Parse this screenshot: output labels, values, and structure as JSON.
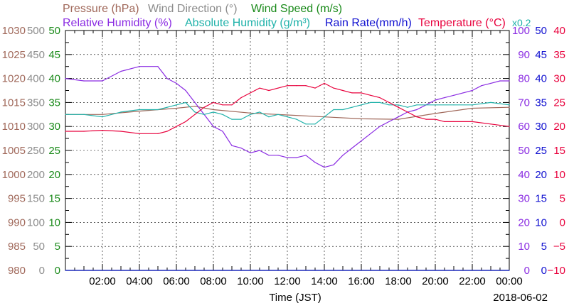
{
  "chart_data": {
    "type": "line",
    "date_label": "2018-06-02",
    "xlabel": "Time (JST)",
    "x_ticks": [
      "02:00",
      "04:00",
      "06:00",
      "08:00",
      "10:00",
      "12:00",
      "14:00",
      "16:00",
      "18:00",
      "20:00",
      "22:00",
      "00:00"
    ],
    "x_range_hours": [
      0,
      24
    ],
    "grid": true,
    "legend_row1": [
      {
        "name": "Pressure (hPa)",
        "color": "#a0685a"
      },
      {
        "name": "Wind Direction (°)",
        "color": "#8c8c8c"
      },
      {
        "name": "Wind Speed (m/s)",
        "color": "#1a8a1a"
      }
    ],
    "legend_row2": [
      {
        "name": "Relative Humidity (%)",
        "color": "#8a2be2"
      },
      {
        "name": "Absolute Humidity (g/m³)",
        "color": "#20b2aa"
      },
      {
        "name": "Rain Rate(mm/h)",
        "color": "#1010d0"
      },
      {
        "name": "Temperature (°C)",
        "color": "#e8003c"
      },
      {
        "name": "x0.2",
        "color": "#20b2aa"
      }
    ],
    "left_axes": [
      {
        "name": "Pressure",
        "color": "#a0685a",
        "ticks": [
          "1030",
          "1025",
          "1020",
          "1015",
          "1010",
          "1005",
          "1000",
          "995",
          "990",
          "985",
          "980"
        ],
        "range": [
          980,
          1030
        ]
      },
      {
        "name": "Wind Direction",
        "color": "#8c8c8c",
        "ticks": [
          "500",
          "450",
          "400",
          "350",
          "300",
          "250",
          "200",
          "150",
          "100",
          "50",
          "0"
        ],
        "range": [
          0,
          500
        ]
      },
      {
        "name": "Wind Speed",
        "color": "#1a8a1a",
        "ticks": [
          "50",
          "45",
          "40",
          "35",
          "30",
          "25",
          "20",
          "15",
          "10",
          "5",
          "0"
        ],
        "range": [
          0,
          50
        ]
      }
    ],
    "right_axes": [
      {
        "name": "Relative Humidity",
        "color": "#8a2be2",
        "ticks": [
          "100",
          "90",
          "80",
          "70",
          "60",
          "50",
          "40",
          "30",
          "20",
          "10",
          "0"
        ],
        "range": [
          0,
          100
        ]
      },
      {
        "name": "Rain Rate",
        "color": "#1010d0",
        "ticks": [
          "50",
          "45",
          "40",
          "35",
          "30",
          "25",
          "20",
          "15",
          "10",
          "5",
          "0"
        ],
        "range": [
          0,
          50
        ]
      },
      {
        "name": "Temperature",
        "color": "#e8003c",
        "ticks": [
          "40",
          "35",
          "30",
          "25",
          "20",
          "15",
          "10",
          "5",
          "0",
          "−5",
          "−10"
        ],
        "range": [
          -10,
          40
        ]
      }
    ],
    "series": [
      {
        "name": "Pressure (hPa)",
        "axis": "Pressure",
        "color": "#a0685a",
        "x": [
          0,
          2,
          4,
          6,
          7,
          8,
          10,
          12,
          14,
          16,
          18,
          20,
          22,
          24
        ],
        "y": [
          1012.5,
          1012.5,
          1013.2,
          1013.8,
          1014.2,
          1013.5,
          1012.8,
          1012.4,
          1012.0,
          1011.6,
          1011.5,
          1012.7,
          1013.8,
          1014.0
        ]
      },
      {
        "name": "Relative Humidity (%)",
        "axis": "Relative Humidity",
        "color": "#8a2be2",
        "x": [
          0,
          1,
          2,
          3,
          4,
          5,
          5.5,
          6,
          6.5,
          7,
          7.5,
          8,
          8.5,
          9,
          9.5,
          10,
          10.5,
          11,
          11.5,
          12,
          12.5,
          13,
          13.5,
          14,
          14.5,
          15,
          15.5,
          16,
          16.5,
          17,
          17.5,
          18,
          18.5,
          19,
          19.5,
          20,
          20.5,
          21,
          21.5,
          22,
          22.5,
          23,
          23.5,
          24
        ],
        "y": [
          80,
          79,
          79,
          83,
          85,
          85,
          80,
          78,
          75,
          70,
          65,
          60,
          58,
          52,
          51,
          49,
          50,
          48,
          48,
          47,
          47,
          48,
          45,
          43,
          44,
          48,
          51,
          54,
          57,
          60,
          62,
          64,
          66,
          67,
          69,
          71,
          72,
          73,
          74,
          75,
          77,
          78,
          79,
          79
        ]
      },
      {
        "name": "Absolute Humidity (g/m³)",
        "axis": "Absolute Humidity",
        "color": "#20b2aa",
        "x": [
          0,
          1,
          2,
          3,
          4,
          5,
          5.5,
          6,
          6.5,
          7,
          7.5,
          8,
          8.5,
          9,
          9.5,
          10,
          10.5,
          11,
          11.5,
          12,
          12.5,
          13,
          13.5,
          14,
          14.5,
          15,
          15.5,
          16,
          16.5,
          17,
          17.5,
          18,
          18.5,
          19,
          20,
          21,
          22,
          23,
          24
        ],
        "y": [
          32.5,
          32.5,
          32.0,
          33.0,
          33.5,
          33.5,
          34.0,
          34.5,
          35.0,
          33.0,
          32.5,
          33.0,
          32.5,
          31.5,
          31.5,
          32.5,
          33.0,
          32.0,
          32.5,
          32.0,
          31.5,
          30.5,
          30.5,
          32.0,
          33.5,
          33.5,
          34.0,
          34.5,
          35.0,
          35.0,
          34.5,
          34.5,
          34.0,
          34.5,
          34.5,
          34.5,
          34.5,
          35.0,
          34.5
        ]
      },
      {
        "name": "Temperature (°C)",
        "axis": "Temperature",
        "color": "#e8003c",
        "x": [
          0,
          1,
          2,
          3,
          4,
          5,
          5.5,
          6,
          6.5,
          7,
          7.5,
          8,
          8.5,
          9,
          9.5,
          10,
          10.5,
          11,
          11.5,
          12,
          12.5,
          13,
          13.5,
          14,
          14.5,
          15,
          15.5,
          16,
          16.5,
          17,
          17.5,
          18,
          18.5,
          19,
          19.5,
          20,
          20.5,
          21,
          22,
          23,
          24
        ],
        "y": [
          19,
          19,
          19.2,
          19,
          18.5,
          18.5,
          19,
          20,
          21,
          22.5,
          24,
          25,
          24.5,
          24.5,
          26,
          27,
          28,
          27.5,
          28,
          28.5,
          28.5,
          28.5,
          28,
          29,
          28,
          27.5,
          27,
          27,
          26.5,
          26,
          25,
          24,
          23,
          22,
          21.5,
          21.5,
          21,
          21,
          21,
          20.5,
          20
        ]
      },
      {
        "name": "Wind Speed (m/s)",
        "axis": "Wind Speed",
        "color": "#1a8a1a",
        "x": [
          0,
          24
        ],
        "y": [
          0,
          0
        ]
      },
      {
        "name": "Rain Rate(mm/h)",
        "axis": "Rain Rate",
        "color": "#1010d0",
        "x": [
          0,
          24
        ],
        "y": [
          0,
          0
        ]
      }
    ]
  }
}
